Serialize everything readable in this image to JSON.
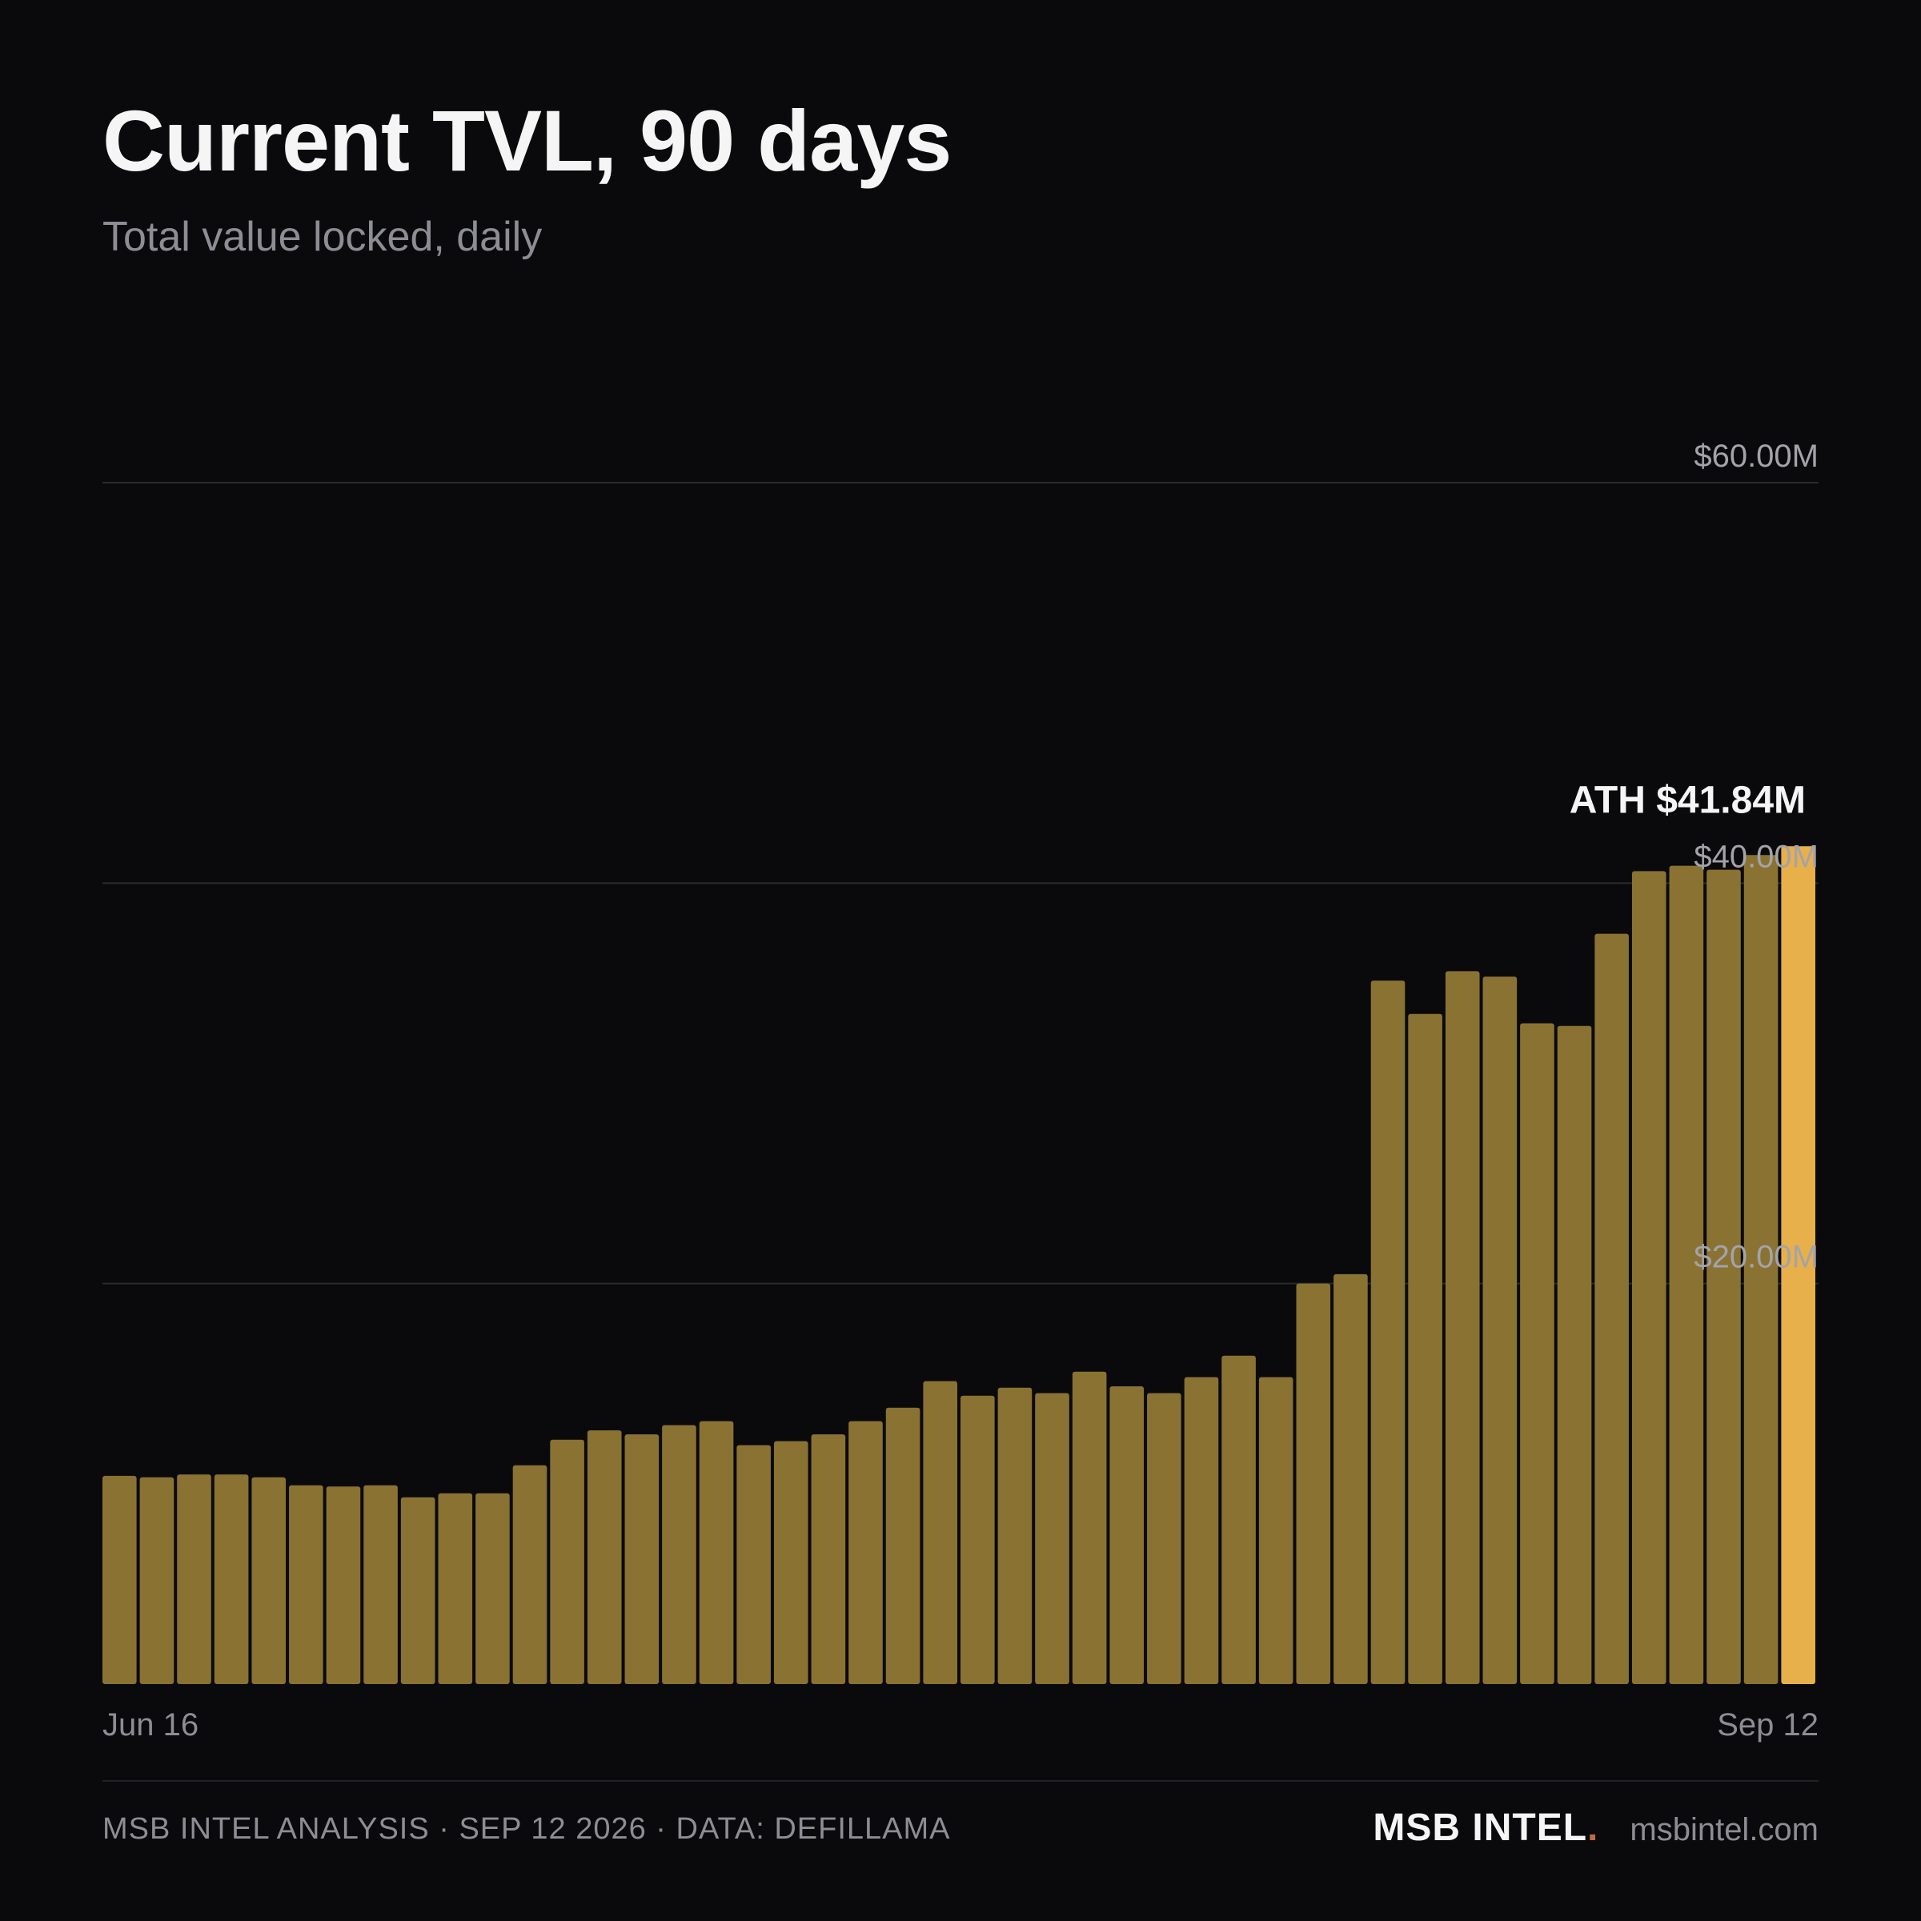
{
  "header": {
    "title": "Current TVL, 90 days",
    "subtitle": "Total value locked, daily"
  },
  "chart_data": {
    "type": "bar",
    "title": "Current TVL, 90 days",
    "subtitle": "Total value locked, daily",
    "xlabel": "",
    "ylabel": "",
    "ylim": [
      0,
      60
    ],
    "y_unit": "$M",
    "y_ticks": [
      20,
      40,
      60
    ],
    "y_tick_labels": [
      "$20.00M",
      "$40.00M",
      "$60.00M"
    ],
    "x_labels": [
      "Jun 16",
      "Sep 12"
    ],
    "grid": true,
    "values": [
      10.4,
      10.33,
      10.47,
      10.47,
      10.33,
      9.93,
      9.87,
      9.93,
      9.33,
      9.53,
      9.53,
      10.93,
      12.2,
      12.67,
      12.47,
      12.93,
      13.13,
      11.93,
      12.13,
      12.47,
      13.13,
      13.8,
      15.13,
      14.4,
      14.8,
      14.53,
      15.6,
      14.87,
      14.53,
      15.33,
      16.4,
      15.33,
      20.0,
      20.47,
      35.13,
      33.47,
      35.6,
      35.33,
      33.0,
      32.87,
      37.47,
      40.6,
      40.87,
      40.67,
      41.4,
      41.84
    ],
    "highlight_index": 45,
    "annotation": "ATH $41.84M",
    "colors": {
      "bar": "#8a7233",
      "highlight": "#e8b04a",
      "grid": "#2a2a2e",
      "background": "#0a0a0c"
    }
  },
  "footer": {
    "left": "MSB INTEL ANALYSIS · SEP 12 2026 · DATA: DEFILLAMA",
    "brand": "MSB INTEL",
    "brand_dot": ".",
    "site": "msbintel.com"
  }
}
